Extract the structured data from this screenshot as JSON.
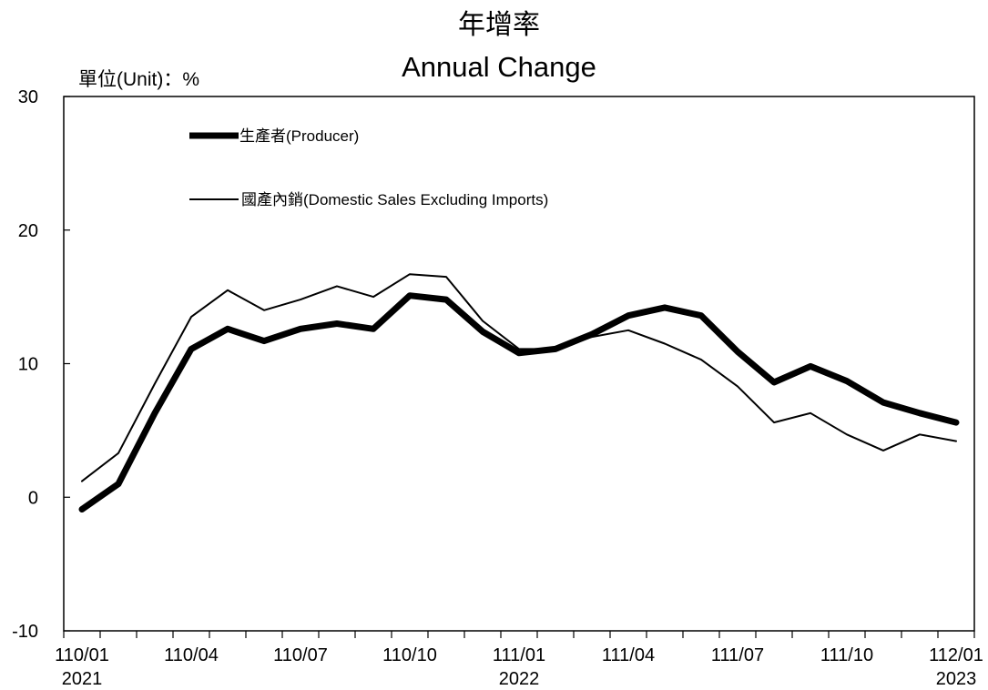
{
  "chart_data": {
    "type": "line",
    "title": "年增率",
    "subtitle": "Annual Change",
    "unit_label": "單位(Unit)：%",
    "ylim": [
      -10,
      30
    ],
    "yticks": [
      "30",
      "20",
      "10",
      "0",
      "-10"
    ],
    "x_labels": [
      {
        "label": "110/01",
        "year": "2021"
      },
      {
        "label": "110/04",
        "year": ""
      },
      {
        "label": "110/07",
        "year": ""
      },
      {
        "label": "110/10",
        "year": ""
      },
      {
        "label": "111/01",
        "year": "2022"
      },
      {
        "label": "111/04",
        "year": ""
      },
      {
        "label": "111/07",
        "year": ""
      },
      {
        "label": "111/10",
        "year": ""
      },
      {
        "label": "112/01",
        "year": "2023"
      }
    ],
    "legend_position": "top-left",
    "grid": false,
    "series": [
      {
        "name": "生產者(Producer)",
        "color": "#000000",
        "width": "thick",
        "values": [
          -0.9,
          1.0,
          6.3,
          11.1,
          12.6,
          11.7,
          12.6,
          13.0,
          12.6,
          15.1,
          14.8,
          12.4,
          10.8,
          11.1,
          12.2,
          13.6,
          14.2,
          13.6,
          10.9,
          8.6,
          9.8,
          8.7,
          7.1,
          6.3,
          5.6
        ]
      },
      {
        "name": "國產內銷(Domestic Sales Excluding Imports)",
        "color": "#000000",
        "width": "thin",
        "values": [
          1.2,
          3.3,
          8.5,
          13.5,
          15.5,
          14.0,
          14.8,
          15.8,
          15.0,
          16.7,
          16.5,
          13.2,
          11.1,
          11.1,
          12.0,
          12.5,
          11.5,
          10.3,
          8.3,
          5.6,
          6.3,
          4.7,
          3.5,
          4.7,
          4.2
        ]
      }
    ]
  }
}
